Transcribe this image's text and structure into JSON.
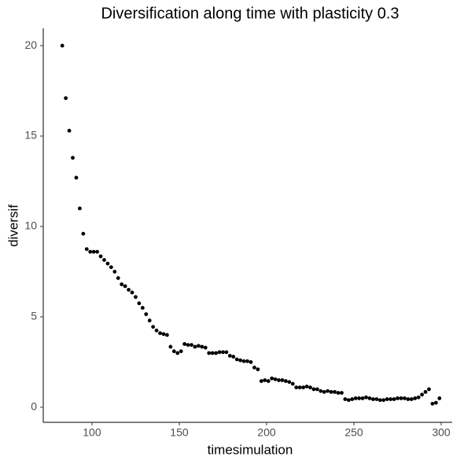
{
  "chart_data": {
    "type": "scatter",
    "title": "Diversification along time with plasticity 0.3",
    "x_label": "timesimulation",
    "y_label": "diversif",
    "color": "#000000",
    "grid": false,
    "xlim": [
      72.1,
      306.3
    ],
    "ylim": [
      -0.83,
      20.96
    ],
    "xticks": [
      100,
      150,
      200,
      250,
      300
    ],
    "yticks": [
      0,
      5,
      10,
      15,
      20
    ],
    "x": [
      83,
      85,
      87,
      89,
      91,
      93,
      95,
      97,
      99,
      101,
      103,
      105,
      107,
      109,
      111,
      113,
      115,
      117,
      119,
      121,
      123,
      125,
      127,
      129,
      131,
      133,
      135,
      137,
      139,
      141,
      143,
      145,
      147,
      149,
      151,
      153,
      155,
      157,
      159,
      161,
      163,
      165,
      167,
      169,
      171,
      173,
      175,
      177,
      179,
      181,
      183,
      185,
      187,
      189,
      191,
      193,
      195,
      197,
      199,
      201,
      203,
      205,
      207,
      209,
      211,
      213,
      215,
      217,
      219,
      221,
      223,
      225,
      227,
      229,
      231,
      233,
      235,
      237,
      239,
      241,
      243,
      245,
      247,
      249,
      251,
      253,
      255,
      257,
      259,
      261,
      263,
      265,
      267,
      269,
      271,
      273,
      275,
      277,
      279,
      281,
      283,
      285,
      287,
      289,
      291,
      293,
      295,
      297,
      299
    ],
    "values": [
      20,
      17.1,
      15.3,
      13.8,
      12.7,
      11.0,
      9.6,
      8.75,
      8.6,
      8.6,
      8.6,
      8.35,
      8.15,
      7.95,
      7.75,
      7.5,
      7.15,
      6.8,
      6.7,
      6.5,
      6.35,
      6.1,
      5.75,
      5.5,
      5.15,
      4.8,
      4.45,
      4.25,
      4.1,
      4.05,
      4.0,
      3.35,
      3.1,
      3.0,
      3.1,
      3.5,
      3.45,
      3.45,
      3.35,
      3.4,
      3.35,
      3.3,
      3.0,
      3.0,
      3.0,
      3.05,
      3.05,
      3.05,
      2.85,
      2.8,
      2.65,
      2.6,
      2.55,
      2.55,
      2.5,
      2.2,
      2.1,
      1.45,
      1.5,
      1.45,
      1.6,
      1.55,
      1.5,
      1.5,
      1.45,
      1.4,
      1.3,
      1.1,
      1.1,
      1.1,
      1.15,
      1.1,
      1.0,
      1.0,
      0.9,
      0.85,
      0.9,
      0.85,
      0.85,
      0.8,
      0.8,
      0.45,
      0.4,
      0.45,
      0.5,
      0.5,
      0.5,
      0.55,
      0.5,
      0.45,
      0.45,
      0.4,
      0.4,
      0.45,
      0.45,
      0.45,
      0.5,
      0.5,
      0.5,
      0.45,
      0.45,
      0.5,
      0.55,
      0.7,
      0.85,
      1.0,
      0.2,
      0.25,
      0.5
    ]
  }
}
